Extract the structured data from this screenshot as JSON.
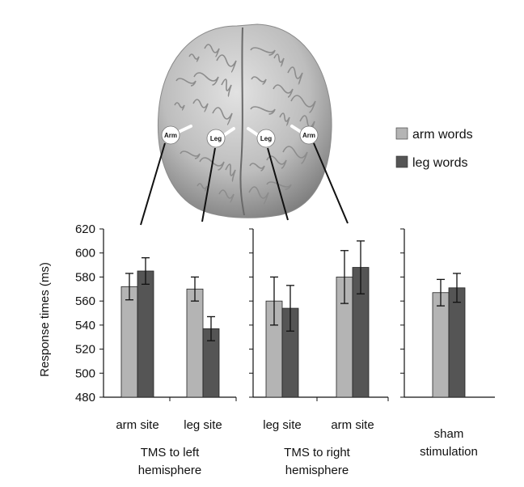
{
  "colors": {
    "arm_words": "#b4b4b4",
    "leg_words": "#555555",
    "brain_light": "#d8d8d8",
    "brain_dark": "#7a7a7a"
  },
  "brain": {
    "markers": [
      "Arm",
      "Leg",
      "Leg",
      "Arm"
    ]
  },
  "chart_data": {
    "type": "bar",
    "ylabel": "Response times (ms)",
    "ylim": [
      480,
      620
    ],
    "yticks": [
      480,
      500,
      520,
      540,
      560,
      580,
      600,
      620
    ],
    "legend": {
      "placement": "top-right",
      "entries": [
        {
          "name": "arm words",
          "color": "#b4b4b4"
        },
        {
          "name": "leg words",
          "color": "#555555"
        }
      ]
    },
    "series": [
      {
        "name": "arm words",
        "values": [
          572,
          570,
          560,
          580,
          567
        ],
        "errors": [
          11,
          10,
          20,
          22,
          11
        ]
      },
      {
        "name": "leg words",
        "values": [
          585,
          537,
          554,
          588,
          571
        ],
        "errors": [
          11,
          10,
          19,
          22,
          12
        ]
      }
    ],
    "categories": [
      "arm site",
      "leg site",
      "leg site",
      "arm site",
      "sham stimulation"
    ],
    "groups": [
      {
        "title": "TMS to left hemisphere",
        "title_lines": [
          "TMS to left",
          "hemisphere"
        ],
        "sites": [
          "arm site",
          "leg site"
        ]
      },
      {
        "title": "TMS to right hemisphere",
        "title_lines": [
          "TMS to right",
          "hemisphere"
        ],
        "sites": [
          "leg site",
          "arm site"
        ]
      },
      {
        "title": "sham stimulation",
        "title_lines": [
          "sham",
          "stimulation"
        ],
        "sites": []
      }
    ]
  }
}
